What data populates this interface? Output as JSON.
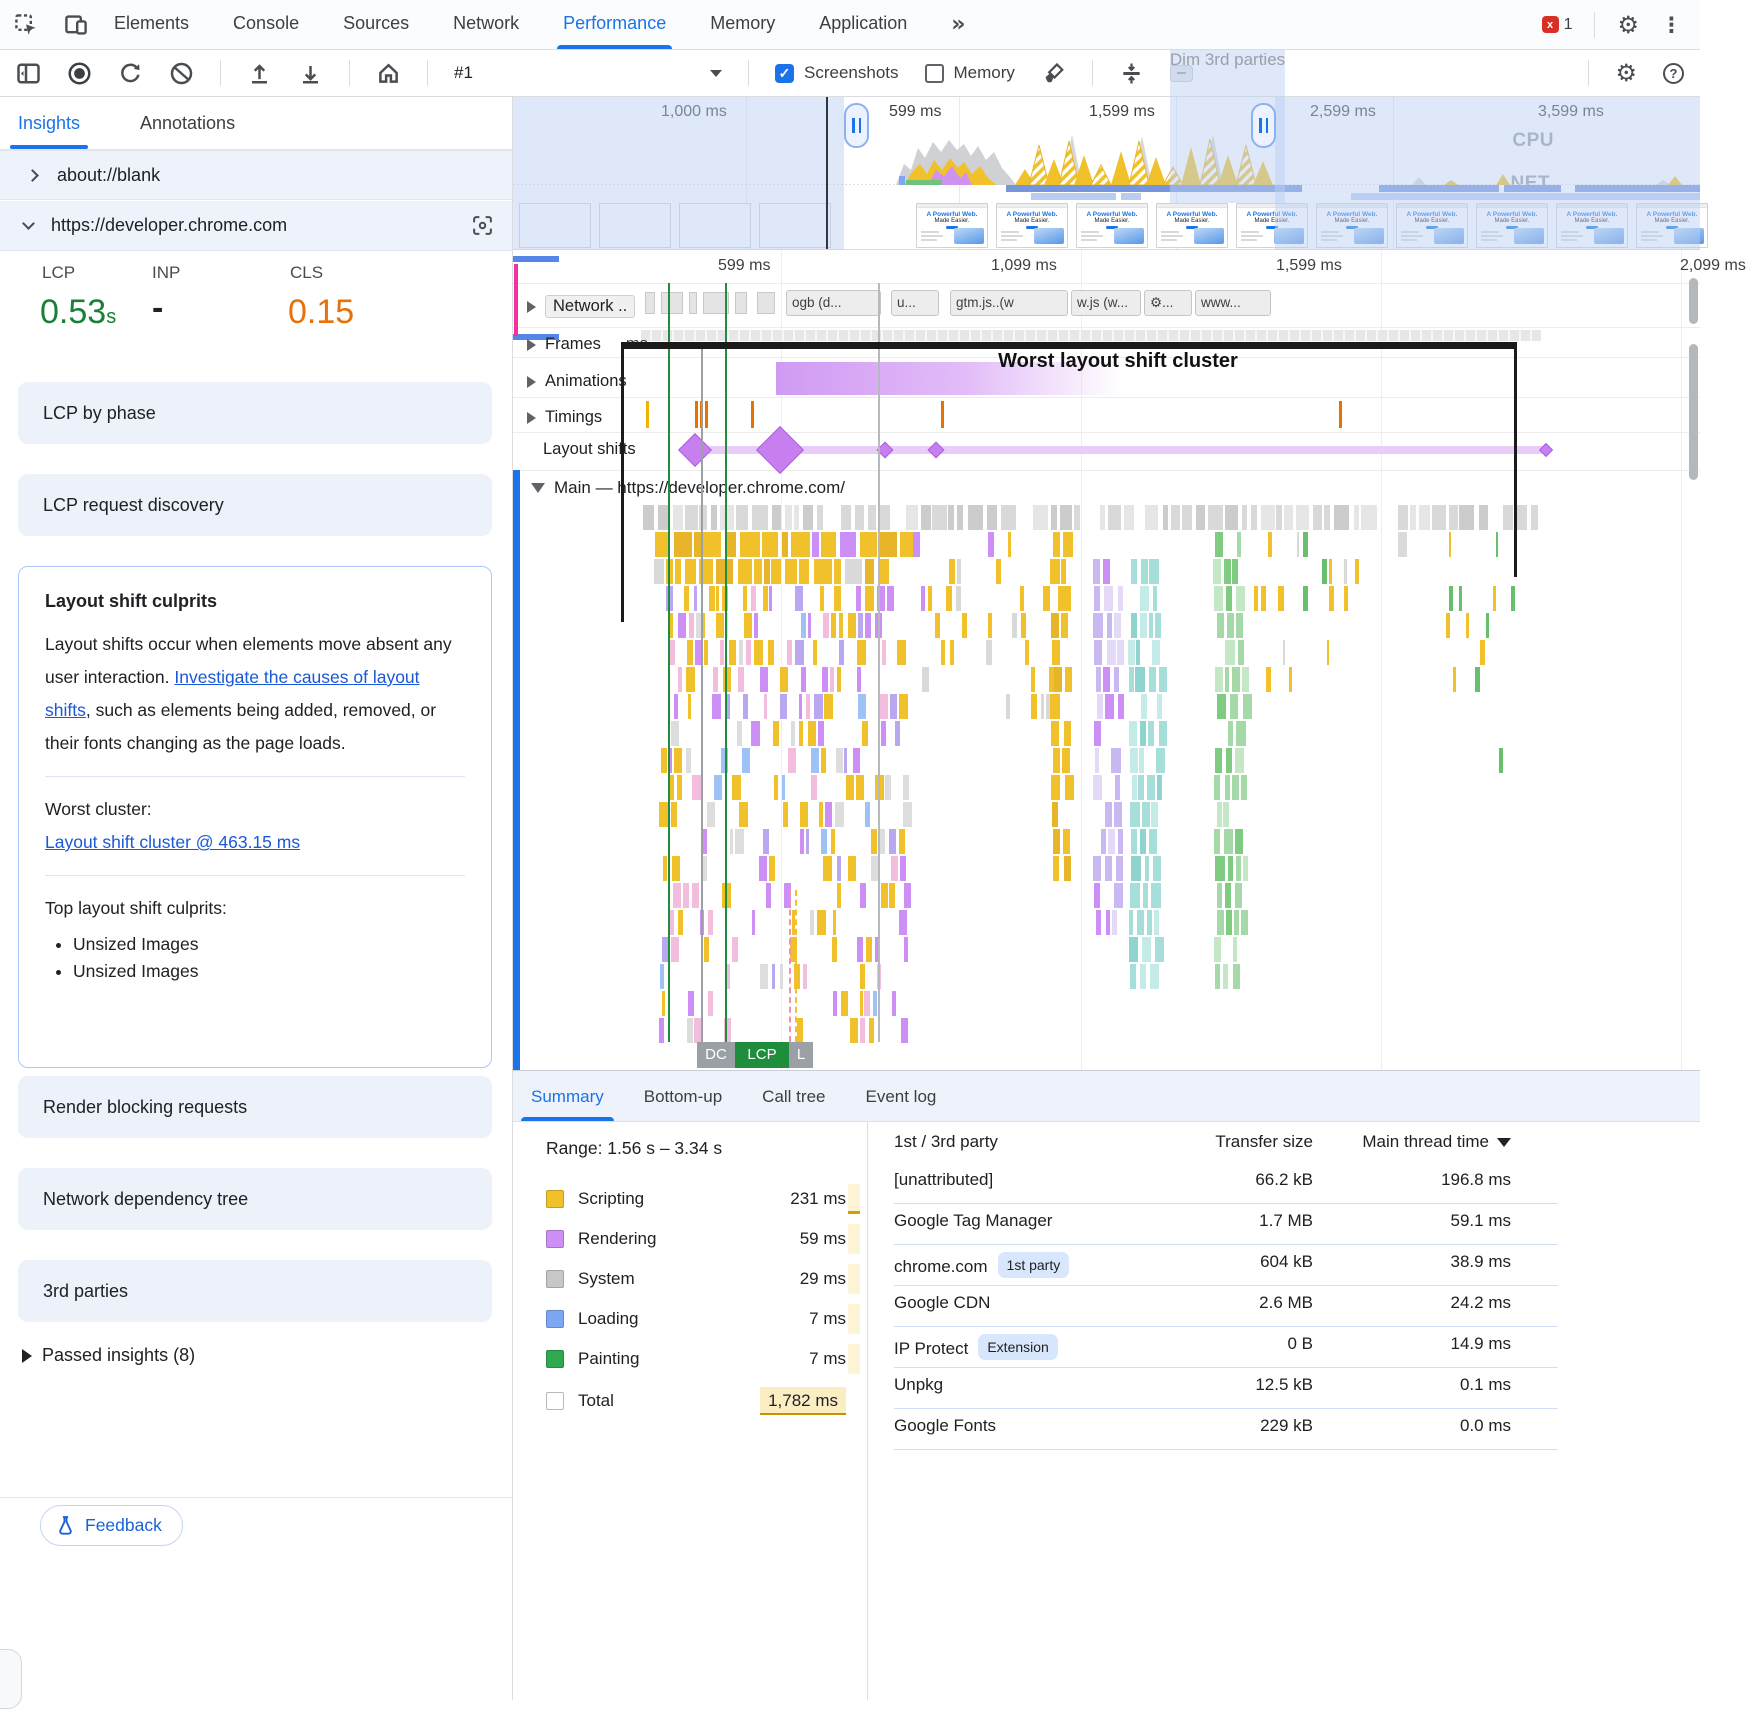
{
  "chrome_devtools": {
    "main_tabs": {
      "items": [
        "Elements",
        "Console",
        "Sources",
        "Network",
        "Performance",
        "Memory",
        "Application"
      ],
      "more": "»",
      "error_count": "1"
    },
    "perf_toolbar": {
      "session_label": "#1",
      "screenshots_label": "Screenshots",
      "memory_label": "Memory",
      "dim_label": "Dim 3rd parties"
    }
  },
  "insights_pane": {
    "tabs": [
      "Insights",
      "Annotations"
    ],
    "frame_rows": [
      "about://blank",
      "https://developer.chrome.com"
    ],
    "metrics": {
      "lcp_label": "LCP",
      "lcp_value": "0.53",
      "lcp_unit": "s",
      "lcp_color": "#188038",
      "inp_label": "INP",
      "inp_value": "-",
      "cls_label": "CLS",
      "cls_value": "0.15",
      "cls_color": "#e8710a"
    },
    "cards_top": [
      "LCP by phase",
      "LCP request discovery"
    ],
    "layout_shift_card": {
      "title": "Layout shift culprits",
      "body_pre": "Layout shifts occur when elements move absent any user interaction. ",
      "body_link": "Investigate the causes of layout shifts",
      "body_post": ", such as elements being added, removed, or their fonts changing as the page loads.",
      "worst_label": "Worst cluster:",
      "worst_link": "Layout shift cluster @ 463.15 ms",
      "top_label": "Top layout shift culprits:",
      "culprits": [
        "Unsized Images",
        "Unsized Images"
      ]
    },
    "cards_bottom": [
      "Render blocking requests",
      "Network dependency tree",
      "3rd parties"
    ],
    "passed_insights": "Passed insights (8)",
    "feedback_label": "Feedback"
  },
  "overview_bar": {
    "time_labels": [
      "1,000 ms",
      "599 ms",
      "1,599 ms",
      "2,599 ms",
      "3,599 ms"
    ],
    "cpu_label": "CPU",
    "net_label": "NET",
    "screenshot_heading": "A Powerful Web.",
    "screenshot_subheading": "Made Easier."
  },
  "track_area": {
    "ruler_labels": [
      "599 ms",
      "1,099 ms",
      "1,599 ms",
      "2,099 ms"
    ],
    "network_track": "Network ..",
    "network_chips": [
      "ogb (d...",
      "u...",
      "gtm.js..(w",
      "w.js (w...",
      "⚙...",
      "www..."
    ],
    "frames_track": "Frames",
    "frames_note": "ms",
    "animations_track": "Animations",
    "timings_track": "Timings",
    "layout_shifts_track": "Layout shifts",
    "cluster_annotation": "Worst layout shift cluster",
    "main_track": "Main — https://developer.chrome.com/",
    "markers": {
      "dcl": "DC",
      "lcp": "LCP",
      "l": "L"
    }
  },
  "details_pane": {
    "tabs": [
      "Summary",
      "Bottom-up",
      "Call tree",
      "Event log"
    ],
    "range": "Range: 1.56 s – 3.34 s",
    "legend": [
      {
        "name": "Scripting",
        "value": "231 ms",
        "color": "#f0c12b"
      },
      {
        "name": "Rendering",
        "value": "59 ms",
        "color": "#cd8ef5"
      },
      {
        "name": "System",
        "value": "29 ms",
        "color": "#c7c7c7"
      },
      {
        "name": "Loading",
        "value": "7 ms",
        "color": "#7da7f2"
      },
      {
        "name": "Painting",
        "value": "7 ms",
        "color": "#2fa84f"
      },
      {
        "name": "Total",
        "value": "1,782 ms",
        "color": "#ffffff"
      }
    ],
    "table": {
      "col_party": "1st / 3rd party",
      "col_size": "Transfer size",
      "col_time": "Main thread time",
      "rows": [
        {
          "name": "[unattributed]",
          "badge": "",
          "size": "66.2 kB",
          "time": "196.8 ms"
        },
        {
          "name": "Google Tag Manager",
          "badge": "",
          "size": "1.7 MB",
          "time": "59.1 ms"
        },
        {
          "name": "chrome.com",
          "badge": "1st party",
          "size": "604 kB",
          "time": "38.9 ms"
        },
        {
          "name": "Google CDN",
          "badge": "",
          "size": "2.6 MB",
          "time": "24.2 ms"
        },
        {
          "name": "IP Protect",
          "badge": "Extension",
          "size": "0 B",
          "time": "14.9 ms"
        },
        {
          "name": "Unpkg",
          "badge": "",
          "size": "12.5 kB",
          "time": "0.1 ms"
        },
        {
          "name": "Google Fonts",
          "badge": "",
          "size": "229 kB",
          "time": "0.0 ms"
        }
      ]
    }
  }
}
